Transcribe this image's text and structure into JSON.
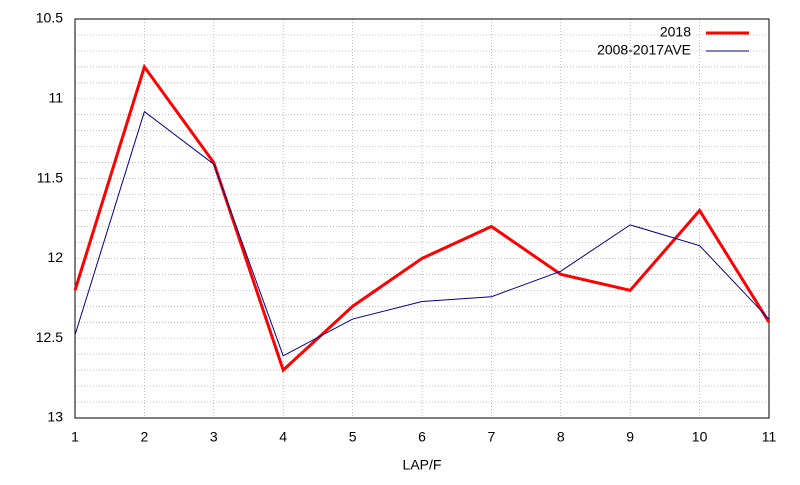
{
  "chart_data": {
    "type": "line",
    "x_label": "LAP/F",
    "x": [
      1,
      2,
      3,
      4,
      5,
      6,
      7,
      8,
      9,
      10,
      11
    ],
    "series": [
      {
        "name": "2018",
        "color": "#ff0000",
        "width": 3,
        "values": [
          12.2,
          10.8,
          11.4,
          12.7,
          12.3,
          12.0,
          11.8,
          12.1,
          12.2,
          11.7,
          12.4
        ]
      },
      {
        "name": "2008-2017AVE",
        "color": "#00008b",
        "width": 1,
        "values": [
          12.48,
          11.08,
          11.41,
          12.61,
          12.38,
          12.27,
          12.24,
          12.08,
          11.79,
          11.92,
          12.38
        ]
      }
    ],
    "xlim": [
      1,
      11
    ],
    "xticks": [
      1,
      2,
      3,
      4,
      5,
      6,
      7,
      8,
      9,
      10,
      11
    ],
    "ylim": [
      13,
      10.5
    ],
    "yticks": [
      10.5,
      11,
      11.5,
      12,
      12.5,
      13
    ],
    "ytick_subdivisions": 5,
    "grid": true,
    "legend": "top-right"
  }
}
